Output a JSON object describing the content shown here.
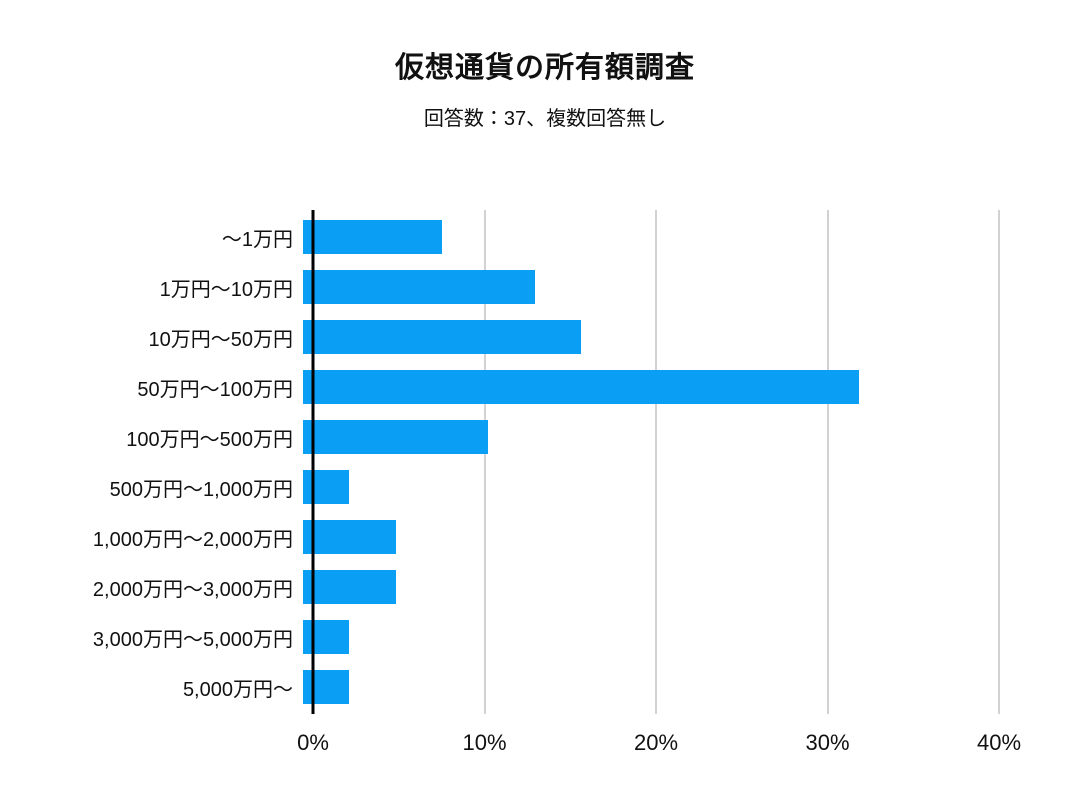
{
  "header": {
    "title": "仮想通貨の所有額調査",
    "subtitle": "回答数：37、複数回答無し"
  },
  "colors": {
    "bar": "#0a9ff5",
    "axis": "#000000",
    "gridline": "#d2d2d2",
    "text": "#111111",
    "background": "#ffffff"
  },
  "chart_data": {
    "type": "bar",
    "orientation": "horizontal",
    "title": "仮想通貨の所有額調査",
    "subtitle": "回答数：37、複数回答無し",
    "categories": [
      "〜1万円",
      "1万円〜10万円",
      "10万円〜50万円",
      "50万円〜100万円",
      "100万円〜500万円",
      "500万円〜1,000万円",
      "1,000万円〜2,000万円",
      "2,000万円〜3,000万円",
      "3,000万円〜5,000万円",
      "5,000万円〜"
    ],
    "values": [
      8.1,
      13.5,
      16.2,
      32.4,
      10.8,
      2.7,
      5.4,
      5.4,
      2.7,
      2.7
    ],
    "unit": "%",
    "xlabel": "",
    "ylabel": "",
    "x_ticks": [
      "0%",
      "10%",
      "20%",
      "30%",
      "40%"
    ],
    "xlim": [
      0,
      40
    ],
    "grid": "vertical",
    "legend": false,
    "bar_color": "#0a9ff5"
  }
}
